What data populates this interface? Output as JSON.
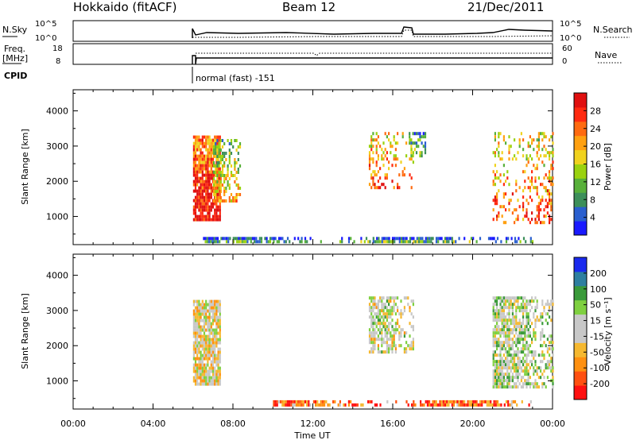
{
  "header": {
    "station": "Hokkaido (fitACF)",
    "beam": "Beam 12",
    "date": "21/Dec/2011"
  },
  "top_panels": {
    "nsky_label": "N.Sky",
    "nsky_ticks": [
      "10^5",
      "10^0"
    ],
    "nsearch_label": "N.Search",
    "nsearch_ticks": [
      "10^5",
      "10^0"
    ],
    "freq_label_1": "Freq.",
    "freq_label_2": "[MHz]",
    "freq_ticks": [
      "18",
      "8"
    ],
    "nave_label": "Nave",
    "nave_ticks": [
      "60",
      "0"
    ],
    "cpid_label": "CPID",
    "cpid_text": "normal (fast) -151"
  },
  "chart_data": [
    {
      "type": "heatmap",
      "name": "power",
      "xlabel": "",
      "ylabel": "Slant Range [km]",
      "xlim": [
        0,
        24
      ],
      "ylim": [
        200,
        4600
      ],
      "yticks": [
        "1000",
        "2000",
        "3000",
        "4000"
      ],
      "colorbar_label": "Power [dB]",
      "colorbar_ticks": [
        "28",
        "24",
        "20",
        "16",
        "12",
        "8",
        "4"
      ],
      "colors": [
        "#1a1aff",
        "#2a5fcf",
        "#3d8f5a",
        "#58b03a",
        "#9ad20f",
        "#f0d21e",
        "#ffa010",
        "#ff6a10",
        "#ff2a10",
        "#e01010"
      ],
      "echo_regions": [
        {
          "t": [
            6.0,
            7.4
          ],
          "r": [
            900,
            3300
          ],
          "level": 0.85
        },
        {
          "t": [
            7.0,
            8.4
          ],
          "r": [
            1400,
            3200
          ],
          "level": 0.5
        },
        {
          "t": [
            14.8,
            17.0
          ],
          "r": [
            1800,
            3400
          ],
          "level": 0.7
        },
        {
          "t": [
            16.8,
            17.6
          ],
          "r": [
            2700,
            3400
          ],
          "level": 0.35
        },
        {
          "t": [
            21.0,
            24.0
          ],
          "r": [
            800,
            3400
          ],
          "level": 0.65
        },
        {
          "t": [
            6.5,
            23.0
          ],
          "r": [
            300,
            420
          ],
          "level": 0.25
        }
      ]
    },
    {
      "type": "heatmap",
      "name": "velocity",
      "xlabel": "Time UT",
      "ylabel": "Slant Range [km]",
      "xlim": [
        0,
        24
      ],
      "ylim": [
        200,
        4600
      ],
      "xticks": [
        "00:00",
        "04:00",
        "08:00",
        "12:00",
        "16:00",
        "20:00",
        "00:00"
      ],
      "yticks": [
        "1000",
        "2000",
        "3000",
        "4000"
      ],
      "colorbar_label": "Velocity [m s⁻¹]",
      "colorbar_ticks": [
        "200",
        "100",
        "50",
        "15",
        "-15",
        "-50",
        "-100",
        "-200"
      ],
      "colors": [
        "#ff1010",
        "#ff5010",
        "#ff9010",
        "#f5b830",
        "#c8c8c8",
        "#c8c8c8",
        "#7fd040",
        "#3a9a3a",
        "#2e7fa0",
        "#1a2aee"
      ],
      "echo_regions": [
        {
          "t": [
            6.0,
            7.4
          ],
          "r": [
            900,
            3300
          ],
          "level": 0.45
        },
        {
          "t": [
            14.8,
            17.0
          ],
          "r": [
            1800,
            3400
          ],
          "level": 0.5
        },
        {
          "t": [
            21.0,
            24.0
          ],
          "r": [
            800,
            3400
          ],
          "level": 0.55
        },
        {
          "t": [
            10.0,
            23.0
          ],
          "r": [
            300,
            450
          ],
          "level": 0.2
        }
      ]
    }
  ]
}
